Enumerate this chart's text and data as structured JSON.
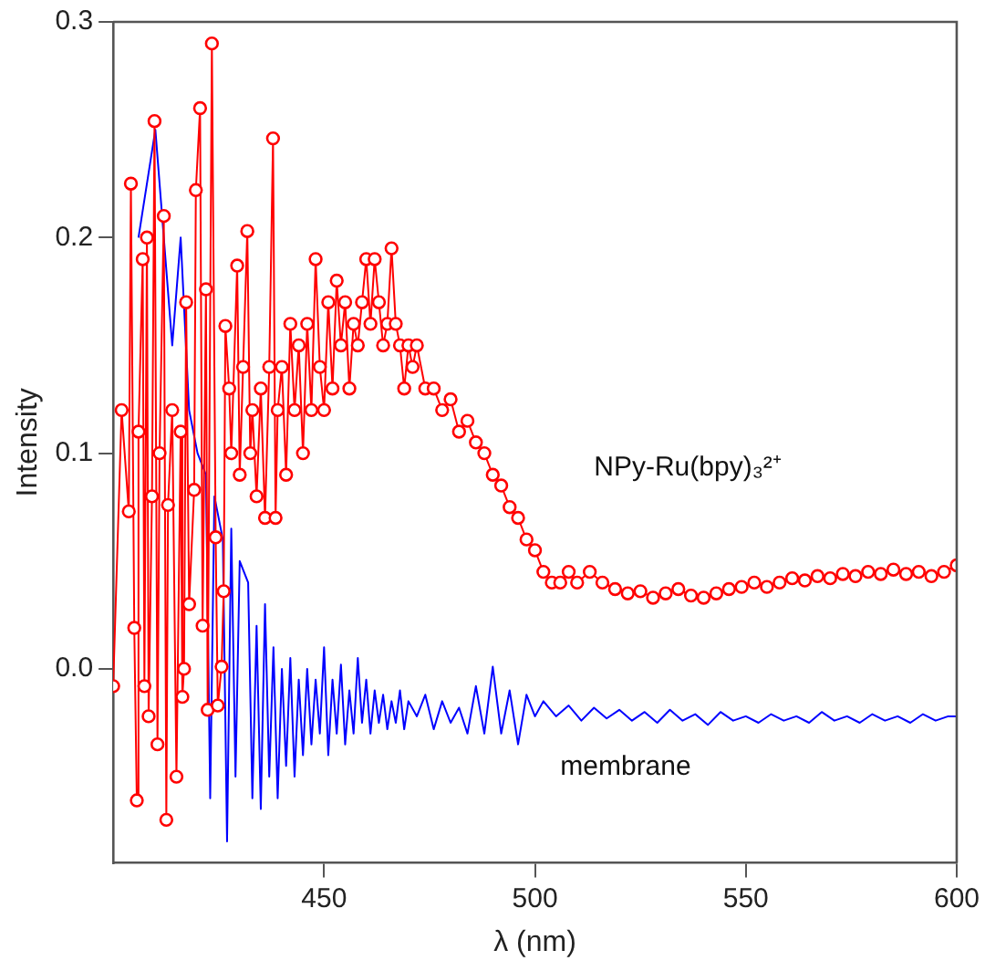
{
  "chart_data": {
    "type": "line",
    "xlabel": "λ (nm)",
    "ylabel": "Intensity",
    "xlim": [
      400,
      600
    ],
    "xticks": [
      450,
      500,
      550,
      600
    ],
    "ylim": [
      -0.09,
      0.3
    ],
    "yticks": [
      {
        "value": 0,
        "label": "0.0"
      },
      0.1,
      0.2,
      0.3
    ],
    "grid": false,
    "legend": false,
    "line_style": "solid",
    "series": [
      {
        "name": "NPy-Ru(bpy)₃²⁺",
        "color": "#ff0000",
        "marker": "circle",
        "x": [
          400,
          401,
          402,
          403,
          403.7,
          404.2,
          405,
          405.6,
          406,
          407,
          407.4,
          408,
          408.4,
          409.2,
          409.8,
          410.5,
          411,
          412,
          412.6,
          413,
          414,
          415,
          416,
          416.4,
          416.8,
          417.3,
          418,
          418.7,
          419.2,
          419.6,
          420.6,
          421.2,
          422,
          422.4,
          423.4,
          424.3,
          424.8,
          425.7,
          426.2,
          426.6,
          427.5,
          428,
          429.4,
          430,
          430.8,
          431.8,
          432.5,
          433,
          434,
          435,
          436,
          437,
          437.9,
          438.5,
          439,
          440,
          441,
          442,
          443,
          444,
          445,
          446,
          447,
          448,
          449,
          450,
          451,
          452,
          453,
          454,
          455,
          456,
          457,
          458,
          459,
          460,
          461,
          462,
          463,
          464,
          465,
          466,
          467,
          468,
          469,
          470,
          471,
          472,
          474,
          476,
          478,
          480,
          482,
          484,
          486,
          488,
          490,
          492,
          494,
          496,
          498,
          500,
          502,
          504,
          506,
          508,
          510,
          513,
          516,
          519,
          522,
          525,
          528,
          531,
          534,
          537,
          540,
          543,
          546,
          549,
          552,
          555,
          558,
          561,
          564,
          567,
          570,
          573,
          576,
          579,
          582,
          585,
          588,
          591,
          594,
          597,
          600
        ],
        "values": [
          -0.008,
          null,
          0.12,
          null,
          0.073,
          0.225,
          0.019,
          -0.061,
          0.11,
          0.19,
          -0.008,
          0.2,
          -0.022,
          0.08,
          0.254,
          -0.035,
          0.1,
          0.21,
          -0.07,
          0.076,
          0.12,
          -0.05,
          0.11,
          -0.013,
          0.0,
          0.17,
          0.03,
          null,
          0.083,
          0.222,
          0.26,
          0.02,
          0.176,
          -0.019,
          0.29,
          0.061,
          -0.017,
          0.001,
          0.036,
          0.159,
          0.13,
          0.1,
          0.187,
          0.09,
          0.14,
          0.203,
          0.1,
          0.12,
          0.08,
          0.13,
          0.07,
          0.14,
          0.246,
          0.07,
          0.12,
          0.14,
          0.09,
          0.16,
          0.12,
          0.15,
          0.1,
          0.16,
          0.12,
          0.19,
          0.14,
          0.12,
          0.17,
          0.13,
          0.18,
          0.15,
          0.17,
          0.13,
          0.16,
          0.15,
          0.17,
          0.19,
          0.16,
          0.19,
          0.17,
          0.15,
          0.16,
          0.195,
          0.16,
          0.15,
          0.13,
          0.15,
          0.14,
          0.15,
          0.13,
          0.13,
          0.12,
          0.125,
          0.11,
          0.115,
          0.105,
          0.1,
          0.09,
          0.085,
          0.075,
          0.07,
          0.06,
          0.055,
          0.045,
          0.04,
          0.04,
          0.045,
          0.04,
          0.045,
          0.04,
          0.037,
          0.035,
          0.036,
          0.033,
          0.035,
          0.037,
          0.034,
          0.033,
          0.035,
          0.037,
          0.038,
          0.04,
          0.038,
          0.04,
          0.042,
          0.041,
          0.043,
          0.042,
          0.044,
          0.043,
          0.045,
          0.044,
          0.046,
          0.044,
          0.045,
          0.043,
          0.045,
          0.048
        ]
      },
      {
        "name": "membrane",
        "color": "#0000ff",
        "marker": "none",
        "x": [
          406,
          407,
          408,
          409,
          410,
          411,
          412,
          413,
          414,
          415,
          416,
          417,
          418,
          419,
          420,
          421,
          422,
          423,
          424,
          425,
          426,
          427,
          428,
          429,
          430,
          431,
          432,
          433,
          434,
          435,
          436,
          437,
          438,
          439,
          440,
          441,
          442,
          443,
          444,
          445,
          446,
          447,
          448,
          449,
          450,
          451,
          452,
          453,
          454,
          455,
          456,
          457,
          458,
          459,
          460,
          461,
          462,
          463,
          464,
          465,
          466,
          467,
          468,
          469,
          470,
          472,
          474,
          476,
          478,
          480,
          482,
          484,
          486,
          488,
          490,
          492,
          494,
          496,
          498,
          500,
          502,
          505,
          508,
          511,
          514,
          517,
          520,
          523,
          526,
          529,
          532,
          535,
          538,
          541,
          544,
          547,
          550,
          553,
          556,
          559,
          562,
          565,
          568,
          571,
          574,
          577,
          580,
          583,
          586,
          589,
          592,
          595,
          598,
          600
        ],
        "values": [
          0.2,
          null,
          null,
          null,
          0.25,
          null,
          null,
          null,
          0.15,
          null,
          0.2,
          null,
          0.12,
          null,
          0.1,
          null,
          0.09,
          -0.06,
          0.08,
          null,
          0.06,
          -0.08,
          0.065,
          -0.05,
          0.05,
          null,
          0.04,
          -0.06,
          0.02,
          -0.065,
          0.03,
          -0.05,
          0.01,
          -0.06,
          0.0,
          -0.045,
          0.005,
          -0.05,
          -0.005,
          -0.04,
          0.0,
          -0.035,
          -0.005,
          -0.03,
          0.01,
          -0.04,
          -0.005,
          -0.03,
          0.002,
          -0.035,
          -0.01,
          -0.03,
          0.005,
          -0.025,
          -0.005,
          -0.03,
          -0.01,
          -0.025,
          -0.012,
          -0.028,
          -0.015,
          -0.025,
          -0.01,
          -0.028,
          -0.015,
          -0.022,
          -0.012,
          -0.028,
          -0.015,
          -0.025,
          -0.018,
          -0.03,
          -0.008,
          -0.03,
          0.001,
          -0.03,
          -0.01,
          -0.035,
          -0.012,
          -0.022,
          -0.015,
          -0.022,
          -0.017,
          -0.024,
          -0.018,
          -0.023,
          -0.019,
          -0.024,
          -0.02,
          -0.025,
          -0.019,
          -0.024,
          -0.021,
          -0.026,
          -0.02,
          -0.024,
          -0.022,
          -0.025,
          -0.021,
          -0.024,
          -0.022,
          -0.025,
          -0.02,
          -0.024,
          -0.022,
          -0.025,
          -0.021,
          -0.024,
          -0.022,
          -0.025,
          -0.021,
          -0.024,
          -0.022,
          -0.022
        ]
      }
    ]
  }
}
